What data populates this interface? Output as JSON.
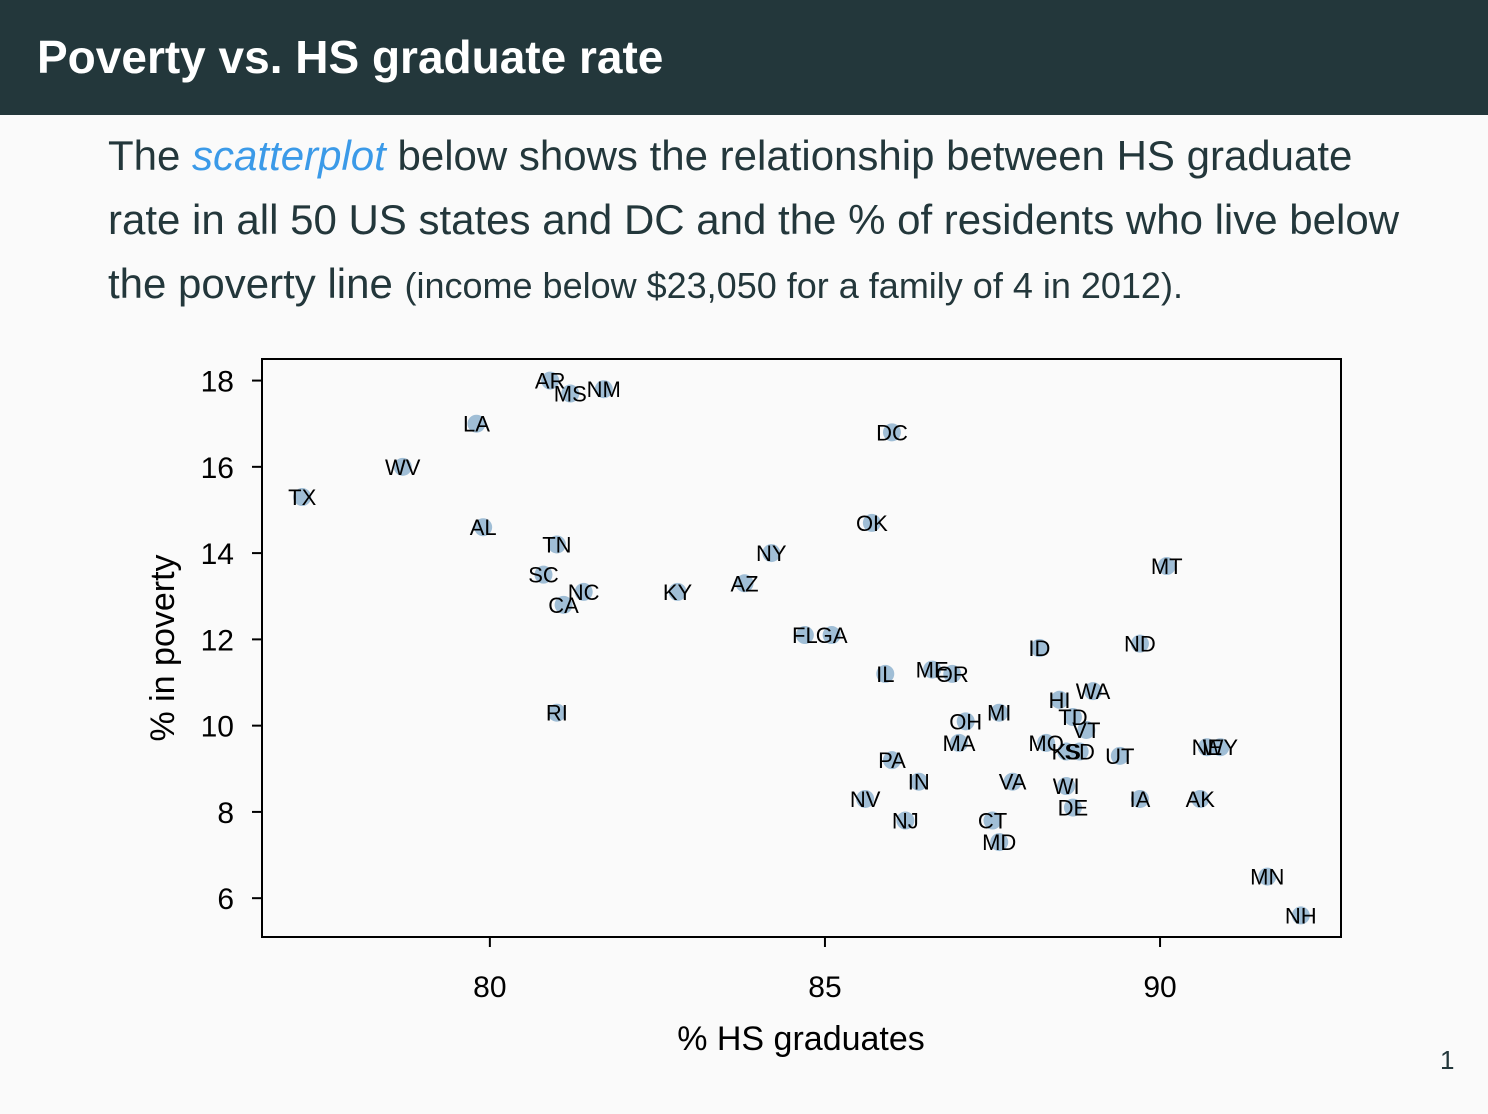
{
  "slide": {
    "title": "Poverty vs. HS graduate rate",
    "intro_before": "The ",
    "intro_link": "scatterplot",
    "intro_after": " below shows the relationship between HS graduate rate in all 50 US states and DC and the % of residents who live below the poverty line ",
    "intro_small": "(income below $23,050 for a family of 4 in 2012).",
    "page_number": "1"
  },
  "colors": {
    "title_bar": "#23373b",
    "link": "#3b9ae8",
    "point": "#8fb3cf",
    "background": "#fafafa"
  },
  "chart_data": {
    "type": "scatter",
    "title": "",
    "xlabel": "% HS graduates",
    "ylabel": "% in poverty",
    "xlim": [
      76.6,
      92.7
    ],
    "ylim": [
      5.1,
      18.5
    ],
    "xticks": [
      80,
      85,
      90
    ],
    "yticks": [
      6,
      8,
      10,
      12,
      14,
      16,
      18
    ],
    "grid": false,
    "legend": "none",
    "points": [
      {
        "label": "AR",
        "x": 80.9,
        "y": 18.0
      },
      {
        "label": "MS",
        "x": 81.2,
        "y": 17.7
      },
      {
        "label": "NM",
        "x": 81.7,
        "y": 17.8
      },
      {
        "label": "LA",
        "x": 79.8,
        "y": 17.0
      },
      {
        "label": "DC",
        "x": 86.0,
        "y": 16.8
      },
      {
        "label": "WV",
        "x": 78.7,
        "y": 16.0
      },
      {
        "label": "TX",
        "x": 77.2,
        "y": 15.3
      },
      {
        "label": "AL",
        "x": 79.9,
        "y": 14.6
      },
      {
        "label": "OK",
        "x": 85.7,
        "y": 14.7
      },
      {
        "label": "TN",
        "x": 81.0,
        "y": 14.2
      },
      {
        "label": "NY",
        "x": 84.2,
        "y": 14.0
      },
      {
        "label": "SC",
        "x": 80.8,
        "y": 13.5
      },
      {
        "label": "NC",
        "x": 81.4,
        "y": 13.1
      },
      {
        "label": "CA",
        "x": 81.1,
        "y": 12.8
      },
      {
        "label": "KY",
        "x": 82.8,
        "y": 13.1
      },
      {
        "label": "AZ",
        "x": 83.8,
        "y": 13.3
      },
      {
        "label": "MT",
        "x": 90.1,
        "y": 13.7
      },
      {
        "label": "FL",
        "x": 84.7,
        "y": 12.1
      },
      {
        "label": "GA",
        "x": 85.1,
        "y": 12.1
      },
      {
        "label": "ID",
        "x": 88.2,
        "y": 11.8
      },
      {
        "label": "ND",
        "x": 89.7,
        "y": 11.9
      },
      {
        "label": "IL",
        "x": 85.9,
        "y": 11.2
      },
      {
        "label": "ME",
        "x": 86.6,
        "y": 11.3
      },
      {
        "label": "OR",
        "x": 86.9,
        "y": 11.2
      },
      {
        "label": "RI",
        "x": 81.0,
        "y": 10.3
      },
      {
        "label": "HI",
        "x": 88.5,
        "y": 10.6
      },
      {
        "label": "WA",
        "x": 89.0,
        "y": 10.8
      },
      {
        "label": "TD",
        "x": 88.7,
        "y": 10.2
      },
      {
        "label": "VT",
        "x": 88.9,
        "y": 9.9
      },
      {
        "label": "MI",
        "x": 87.6,
        "y": 10.3
      },
      {
        "label": "OH",
        "x": 87.1,
        "y": 10.1
      },
      {
        "label": "MA",
        "x": 87.0,
        "y": 9.6
      },
      {
        "label": "MO",
        "x": 88.3,
        "y": 9.6
      },
      {
        "label": "KS",
        "x": 88.6,
        "y": 9.4
      },
      {
        "label": "SD",
        "x": 88.8,
        "y": 9.4
      },
      {
        "label": "UT",
        "x": 89.4,
        "y": 9.3
      },
      {
        "label": "NE",
        "x": 90.7,
        "y": 9.5
      },
      {
        "label": "WY",
        "x": 90.9,
        "y": 9.5
      },
      {
        "label": "PA",
        "x": 86.0,
        "y": 9.2
      },
      {
        "label": "IN",
        "x": 86.4,
        "y": 8.7
      },
      {
        "label": "VA",
        "x": 87.8,
        "y": 8.7
      },
      {
        "label": "WI",
        "x": 88.6,
        "y": 8.6
      },
      {
        "label": "NV",
        "x": 85.6,
        "y": 8.3
      },
      {
        "label": "IA",
        "x": 89.7,
        "y": 8.3
      },
      {
        "label": "AK",
        "x": 90.6,
        "y": 8.3
      },
      {
        "label": "DE",
        "x": 88.7,
        "y": 8.1
      },
      {
        "label": "NJ",
        "x": 86.2,
        "y": 7.8
      },
      {
        "label": "CT",
        "x": 87.5,
        "y": 7.8
      },
      {
        "label": "MD",
        "x": 87.6,
        "y": 7.3
      },
      {
        "label": "MN",
        "x": 91.6,
        "y": 6.5
      },
      {
        "label": "NH",
        "x": 92.1,
        "y": 5.6
      }
    ]
  }
}
